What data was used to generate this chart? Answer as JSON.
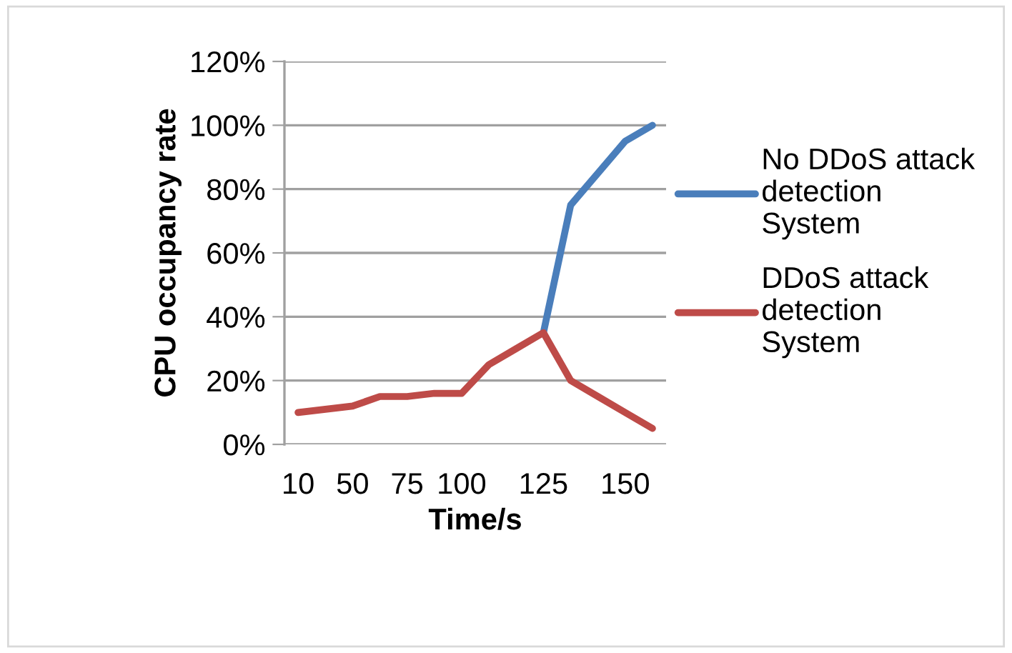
{
  "chart_data": {
    "type": "line",
    "xlabel": "Time/s",
    "ylabel": "CPU occupancy rate",
    "categories": [
      "10",
      null,
      "50",
      null,
      "75",
      null,
      "100",
      null,
      null,
      "125",
      null,
      null,
      "150",
      null
    ],
    "series": [
      {
        "name": "No DDoS attack detection System",
        "color": "#4a7ebb",
        "values": [
          null,
          null,
          null,
          null,
          null,
          null,
          null,
          null,
          null,
          35,
          75,
          85,
          95,
          100
        ]
      },
      {
        "name": "DDoS attack detection System",
        "color": "#be4b48",
        "values": [
          10,
          11,
          12,
          15,
          15,
          16,
          16,
          25,
          30,
          35,
          20,
          15,
          10,
          5
        ]
      }
    ],
    "ylim": [
      0,
      120
    ],
    "yticks": [
      {
        "value": 0,
        "label": "0%"
      },
      {
        "value": 20,
        "label": "20%"
      },
      {
        "value": 40,
        "label": "40%"
      },
      {
        "value": 60,
        "label": "60%"
      },
      {
        "value": 80,
        "label": "80%"
      },
      {
        "value": 100,
        "label": "100%"
      },
      {
        "value": 120,
        "label": "120%"
      }
    ],
    "grid": "y",
    "legend": "right",
    "marker": "none",
    "line_style": "solid"
  }
}
